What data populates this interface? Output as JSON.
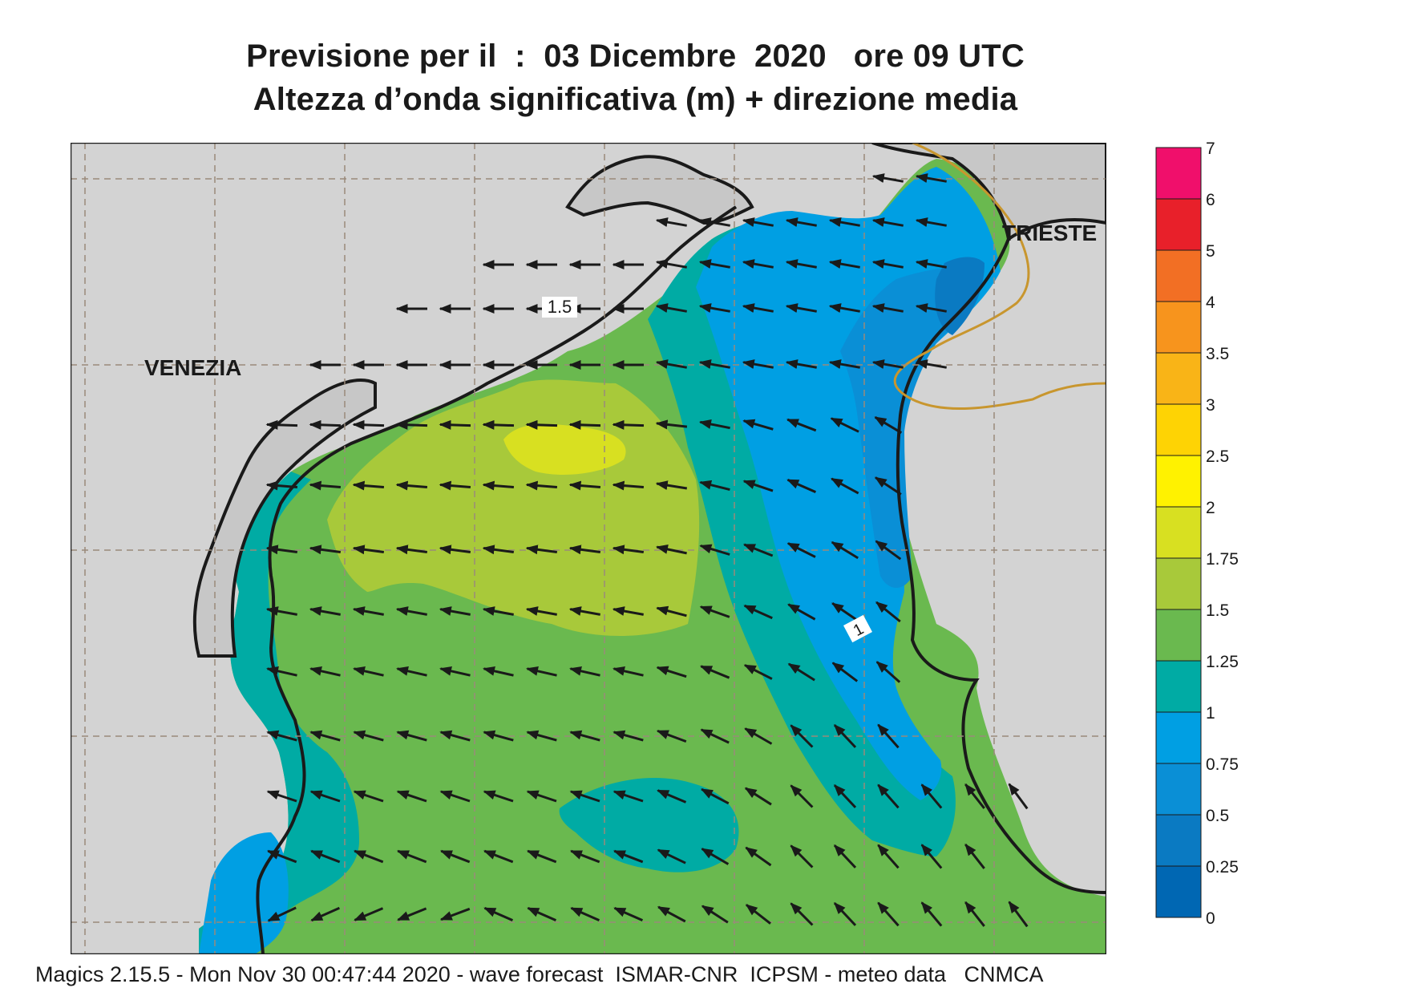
{
  "header": {
    "line1": "Previsione per il  :  03 Dicembre  2020   ore 09 UTC",
    "line2": "Altezza d’onda significativa (m) + direzione media"
  },
  "map": {
    "cities": [
      {
        "name": "VENEZIA"
      },
      {
        "name": "TRIESTE"
      }
    ],
    "contour_labels": [
      "1.5",
      "1"
    ],
    "colors": {
      "land": "#d3d3d3",
      "coast": "#1a1a1a",
      "grid": "#9a8a7a",
      "border": "#c8962e",
      "arrow": "#1a1a1a"
    }
  },
  "legend": {
    "labels": [
      "7",
      "6",
      "5",
      "4",
      "3.5",
      "3",
      "2.5",
      "2",
      "1.75",
      "1.5",
      "1.25",
      "1",
      "0.75",
      "0.5",
      "0.25",
      "0"
    ],
    "colors_top_to_bottom": [
      "#f00f6b",
      "#e8202a",
      "#f26f24",
      "#f7941d",
      "#f9b417",
      "#fed304",
      "#fff200",
      "#d8e021",
      "#a8c93a",
      "#6ab94f",
      "#00aba4",
      "#009fe3",
      "#0a8fd6",
      "#0a7ac2",
      "#0067b3"
    ]
  },
  "footer": {
    "text": "Magics 2.15.5 - Mon Nov 30 00:47:44 2020 - wave forecast  ISMAR-CNR  ICPSM - meteo data   CNMCA"
  }
}
